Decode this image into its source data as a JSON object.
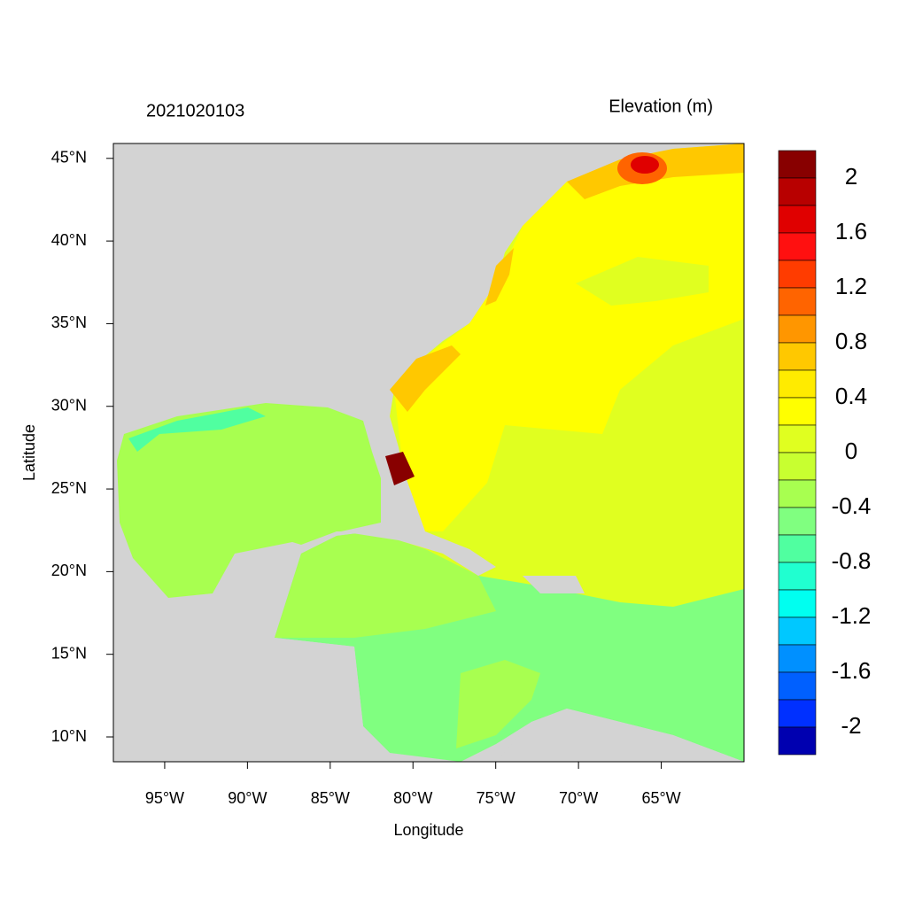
{
  "map": {
    "left_title": "2021020103",
    "right_title": "Elevation (m)",
    "x_label": "Longitude",
    "y_label": "Latitude",
    "xlim": [
      -98.1,
      -60
    ],
    "ylim": [
      8.5,
      45.9
    ],
    "xticks": [
      {
        "value": -95,
        "label": "95°W"
      },
      {
        "value": -90,
        "label": "90°W"
      },
      {
        "value": -85,
        "label": "85°W"
      },
      {
        "value": -80,
        "label": "80°W"
      },
      {
        "value": -75,
        "label": "75°W"
      },
      {
        "value": -70,
        "label": "70°W"
      },
      {
        "value": -65,
        "label": "65°W"
      }
    ],
    "yticks": [
      {
        "value": 10,
        "label": "10°N"
      },
      {
        "value": 15,
        "label": "15°N"
      },
      {
        "value": 20,
        "label": "20°N"
      },
      {
        "value": 25,
        "label": "25°N"
      },
      {
        "value": 30,
        "label": "30°N"
      },
      {
        "value": 35,
        "label": "35°N"
      },
      {
        "value": 40,
        "label": "40°N"
      },
      {
        "value": 45,
        "label": "45°N"
      }
    ],
    "colorbar": {
      "clim": [
        -2.2,
        2.2
      ],
      "colors": [
        "#880000",
        "#b80000",
        "#e00000",
        "#ff1010",
        "#ff3c00",
        "#ff6400",
        "#ff9600",
        "#ffc800",
        "#ffeb00",
        "#ffff00",
        "#e0ff20",
        "#c8ff30",
        "#a8ff50",
        "#80ff80",
        "#50ffa0",
        "#20ffd0",
        "#00fff0",
        "#00c8ff",
        "#0090ff",
        "#0060ff",
        "#0030ff",
        "#0000b0"
      ],
      "labels": [
        2,
        1.6,
        1.2,
        0.8,
        0.4,
        0,
        -0.4,
        -0.8,
        -1.2,
        -1.6,
        -2
      ]
    }
  }
}
